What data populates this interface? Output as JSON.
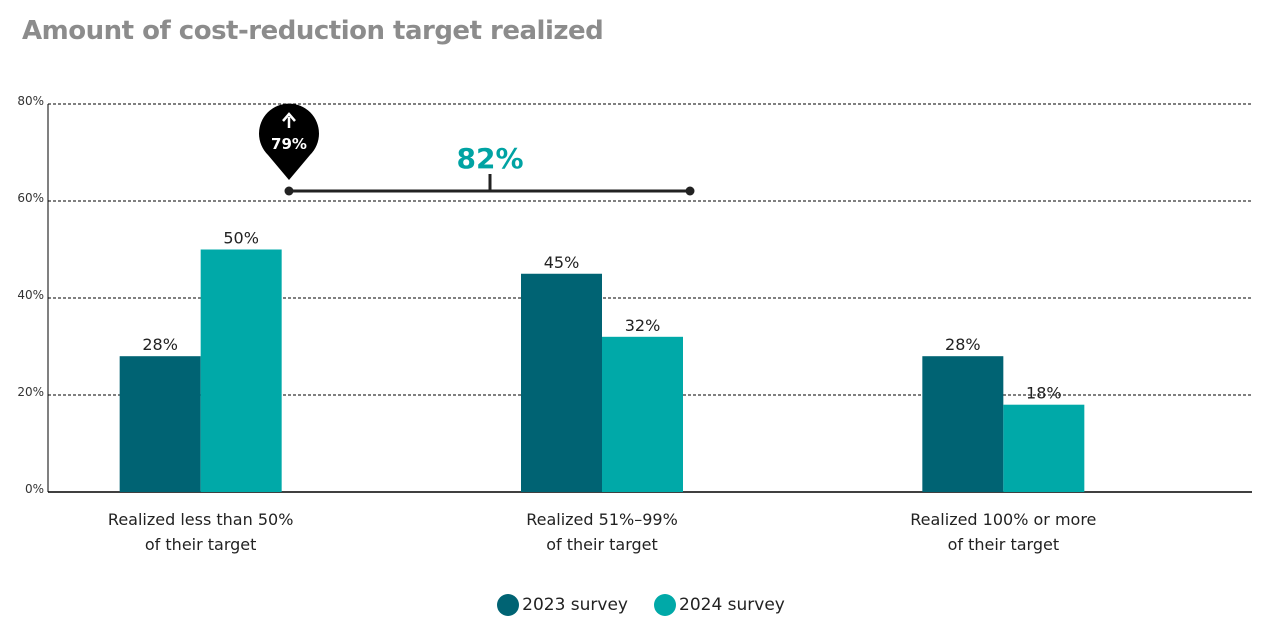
{
  "chart_data": {
    "type": "bar",
    "title": "Amount of cost-reduction target realized",
    "xlabel": "",
    "ylabel": "",
    "ylim": [
      0,
      80
    ],
    "yticks": [
      0,
      20,
      40,
      60,
      80
    ],
    "ytick_labels": [
      "0%",
      "20%",
      "40%",
      "60%",
      "80%"
    ],
    "grid": true,
    "categories": [
      [
        "Realized less than 50%",
        "of their target"
      ],
      [
        "Realized 51%–99%",
        "of their target"
      ],
      [
        "Realized 100% or more",
        "of their target"
      ]
    ],
    "series": [
      {
        "name": "2023 survey",
        "color": "#006373",
        "values": [
          28,
          45,
          28
        ],
        "labels": [
          "28%",
          "45%",
          "28%"
        ]
      },
      {
        "name": "2024 survey",
        "color": "#00a9a8",
        "values": [
          50,
          32,
          18
        ],
        "labels": [
          "50%",
          "32%",
          "18%"
        ]
      }
    ],
    "legend": "bottom-center",
    "annotations": {
      "pin": {
        "text": "79%",
        "arrow": "up",
        "color": "#000000"
      },
      "bracket": {
        "text": "82%",
        "color": "#00a3a3"
      }
    }
  }
}
